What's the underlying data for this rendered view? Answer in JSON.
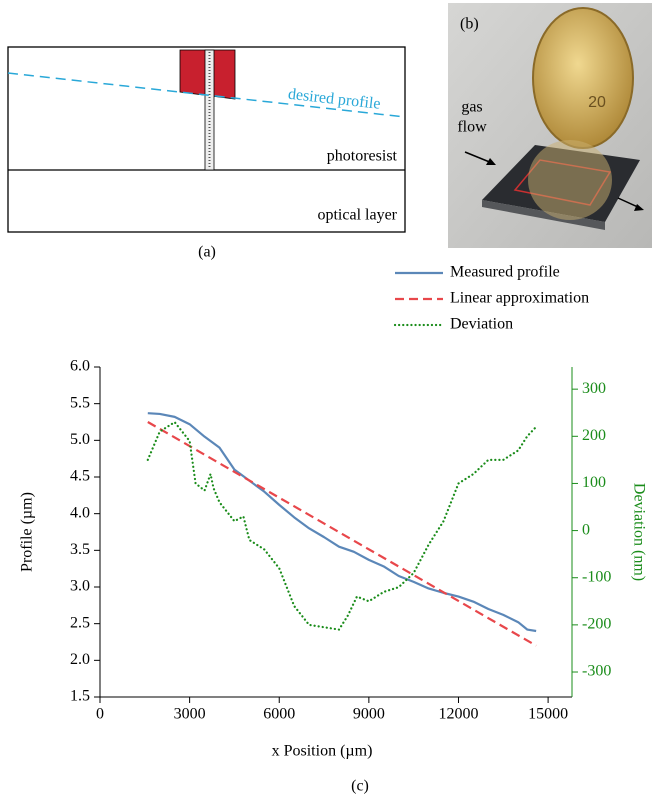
{
  "panel_a": {
    "label": "(a)",
    "desired_profile": "desired profile",
    "photoresist": "photoresist",
    "optical_layer": "optical layer"
  },
  "panel_b": {
    "label": "(b)",
    "gas_flow": [
      "gas",
      "flow"
    ],
    "coin_value": "20"
  },
  "panel_c": {
    "label": "(c)",
    "chart_data": {
      "type": "line",
      "xlabel": "x Position (µm)",
      "ylabel": "Profile (µm)",
      "y2label": "Deviation (nm)",
      "xlim": [
        0,
        15800
      ],
      "xticks": [
        0,
        3000,
        6000,
        9000,
        12000,
        15000
      ],
      "ylim": [
        1.5,
        6.0
      ],
      "yticks": [
        1.5,
        {
          "value": 2,
          "label": "2.0"
        },
        2.5,
        {
          "value": 3,
          "label": "3.0"
        },
        3.5,
        {
          "value": 4,
          "label": "4.0"
        },
        4.5,
        {
          "value": 5,
          "label": "5.0"
        },
        5.5,
        {
          "value": 6,
          "label": "6.0"
        }
      ],
      "y2lim": [
        -353,
        347
      ],
      "y2ticks": [
        -300,
        -200,
        -100,
        0,
        100,
        200,
        300
      ],
      "y2color": "#1a8c1a",
      "series": [
        {
          "name": "Measured profile",
          "color": "#5b87b8",
          "style": "solid",
          "x": [
            1600,
            2000,
            2500,
            3000,
            3500,
            4000,
            4500,
            5000,
            5500,
            6000,
            6500,
            7000,
            7500,
            8000,
            8500,
            9000,
            9500,
            10000,
            10500,
            11000,
            11500,
            12000,
            12500,
            13000,
            13500,
            14000,
            14300,
            14600
          ],
          "values": [
            5.37,
            5.36,
            5.32,
            5.22,
            5.05,
            4.9,
            4.6,
            4.45,
            4.3,
            4.12,
            3.95,
            3.8,
            3.68,
            3.55,
            3.48,
            3.37,
            3.28,
            3.15,
            3.07,
            2.98,
            2.92,
            2.87,
            2.8,
            2.7,
            2.62,
            2.52,
            2.42,
            2.4
          ]
        },
        {
          "name": "Linear approximation",
          "color": "#e8474b",
          "style": "dashed",
          "x": [
            1600,
            14600
          ],
          "values": [
            5.25,
            2.2
          ]
        },
        {
          "name": "Deviation",
          "color": "#1a8c1a",
          "style": "dotted",
          "axis": "y2",
          "x": [
            1600,
            2000,
            2500,
            3000,
            3200,
            3500,
            3700,
            3800,
            4000,
            4500,
            4800,
            5000,
            5500,
            6000,
            6500,
            7000,
            7500,
            8000,
            8300,
            8600,
            9000,
            9500,
            10000,
            10500,
            11000,
            11500,
            12000,
            12500,
            13000,
            13500,
            14000,
            14300,
            14600
          ],
          "values": [
            150,
            210,
            230,
            190,
            100,
            85,
            120,
            90,
            60,
            20,
            30,
            -20,
            -40,
            -80,
            -160,
            -200,
            -205,
            -210,
            -180,
            -140,
            -150,
            -130,
            -120,
            -90,
            -30,
            20,
            100,
            120,
            150,
            150,
            170,
            200,
            220
          ]
        }
      ]
    }
  }
}
